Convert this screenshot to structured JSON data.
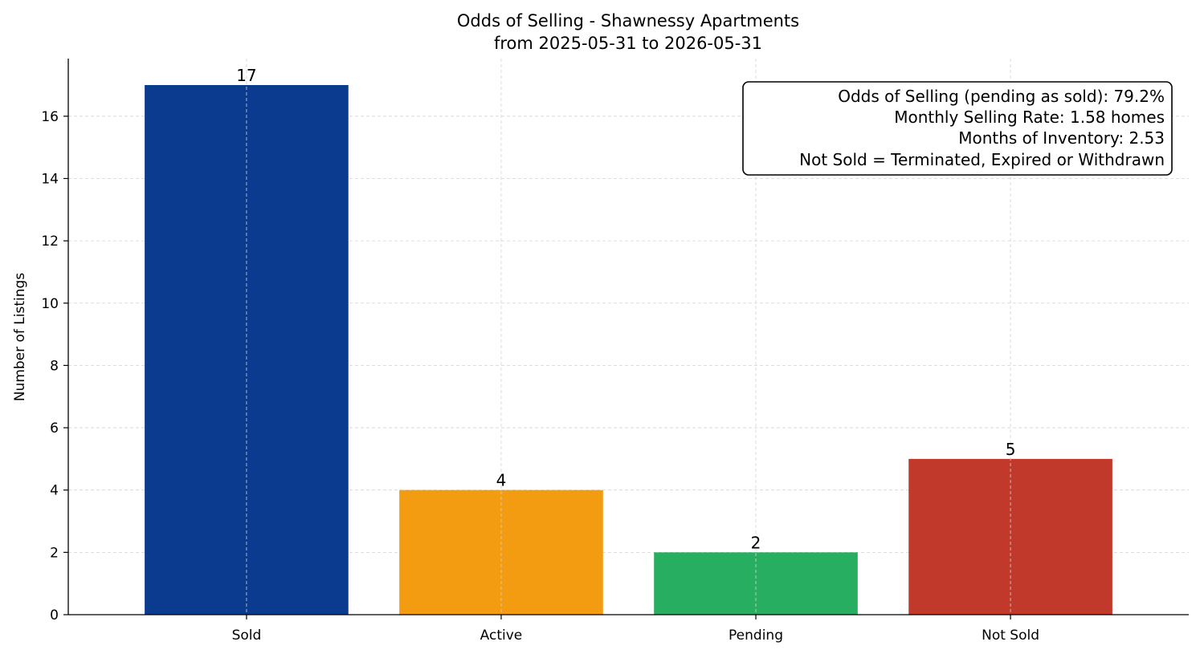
{
  "chart_data": {
    "type": "bar",
    "title": "Odds of Selling - Shawnessy Apartments",
    "subtitle": "from 2025-05-31 to 2026-05-31",
    "xlabel": "",
    "ylabel": "Number of Listings",
    "categories": [
      "Sold",
      "Active",
      "Pending",
      "Not Sold"
    ],
    "values": [
      17,
      4,
      2,
      5
    ],
    "colors": [
      "#0b3b8f",
      "#f39c12",
      "#27ae60",
      "#c0392b"
    ],
    "ylim": [
      0,
      17.85
    ],
    "yticks": [
      0,
      2,
      4,
      6,
      8,
      10,
      12,
      14,
      16
    ],
    "grid": true,
    "annotation": {
      "lines": [
        "Odds of Selling (pending as sold): 79.2%",
        "Monthly Selling Rate: 1.58 homes",
        "Months of Inventory: 2.53",
        "Not Sold = Terminated, Expired or Withdrawn"
      ],
      "placement": "top-right"
    }
  }
}
